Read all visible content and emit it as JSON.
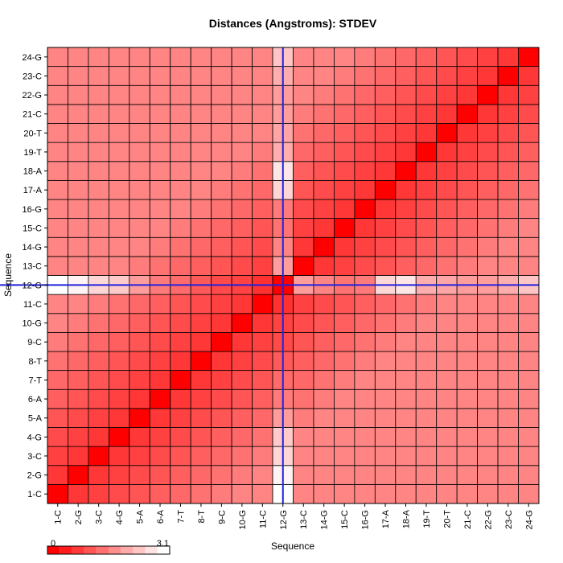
{
  "chart_data": {
    "type": "heatmap",
    "title": "Distances (Angstroms):  STDEV",
    "xlabel": "Sequence",
    "ylabel": "Sequence",
    "labels": [
      "1-C",
      "2-G",
      "3-C",
      "4-G",
      "5-A",
      "6-A",
      "7-T",
      "8-T",
      "9-C",
      "10-G",
      "11-C",
      "12-G",
      "13-C",
      "14-G",
      "15-C",
      "16-G",
      "17-A",
      "18-A",
      "19-T",
      "20-T",
      "21-C",
      "22-G",
      "23-C",
      "24-G"
    ],
    "colorbar": {
      "min_label": "0",
      "max_label": "3.1",
      "min": 0,
      "max": 3.1
    },
    "highlight_label": "12-G",
    "highlight_color": "#2222dd",
    "low_color": "#ff0000",
    "high_color": "#ffffff",
    "diagonal_value": 0,
    "highlight_row_values": [
      3.1,
      2.95,
      2.6,
      2.45,
      1.9,
      1.5,
      1.3,
      1.1,
      0.9,
      0.8,
      0.6,
      0.0,
      1.9,
      1.6,
      1.4,
      1.5,
      2.6,
      2.8,
      2.1,
      2.0,
      1.9,
      1.9,
      2.1,
      2.4
    ],
    "base_value": 0.55,
    "distance_step": 0.12,
    "max_value": 1.6
  }
}
